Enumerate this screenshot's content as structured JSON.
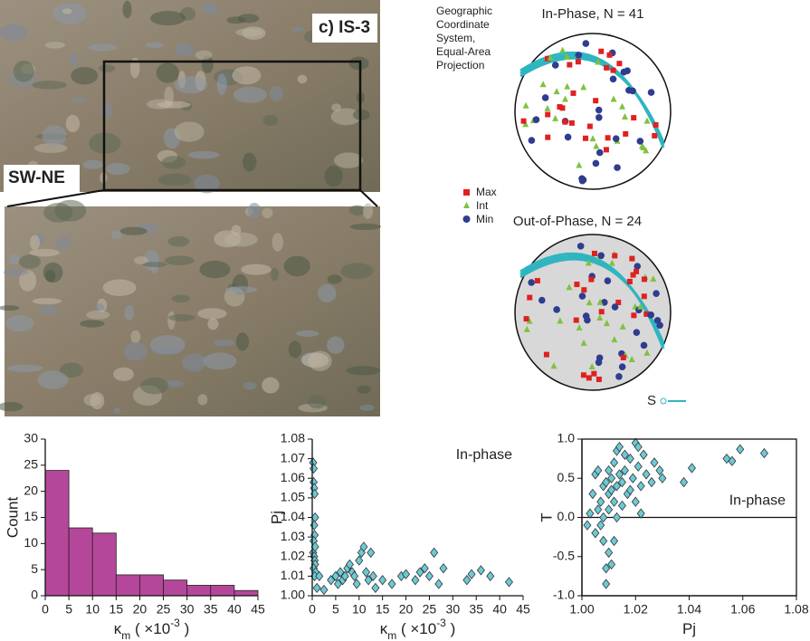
{
  "figure": {
    "panel_label": "c) IS-3",
    "photo_label": "SW-NE",
    "note": [
      "Geographic",
      "Coordinate",
      "System,",
      "Equal-Area",
      "Projection"
    ],
    "stereonets": [
      {
        "title": "In-Phase, N = 41"
      },
      {
        "title": "Out-of-Phase, N = 24"
      }
    ],
    "legend": [
      "Max",
      "Int",
      "Min"
    ],
    "foliation_label": "S"
  },
  "chart_data": [
    {
      "type": "histogram",
      "y_label": "Count",
      "x_label": [
        "κ",
        "m",
        " ( ×10",
        "-3",
        " )"
      ],
      "bins": [
        0,
        5,
        10,
        15,
        20,
        25,
        30,
        35,
        40,
        45
      ],
      "values": [
        24,
        13,
        12,
        4,
        4,
        3,
        2,
        2,
        1
      ],
      "color": "#b5479a",
      "xlim": [
        0,
        45
      ],
      "ylim": [
        0,
        30
      ],
      "xticks": [
        0,
        5,
        10,
        15,
        20,
        25,
        30,
        35,
        40,
        45
      ],
      "yticks": [
        0,
        5,
        10,
        15,
        20,
        25,
        30
      ]
    },
    {
      "type": "scatter",
      "annotation": "In-phase",
      "y_label": "Pj",
      "x_label": [
        "κ",
        "m",
        " ( ×10",
        "-3",
        " )"
      ],
      "color": "#6ccad6",
      "x": [
        0.2,
        0.3,
        0.3,
        0.4,
        0.5,
        0.6,
        0.4,
        0.5,
        0.3,
        0.2,
        0.4,
        0.5,
        0.6,
        0.3,
        0.7,
        0.5,
        1.0,
        0.6,
        2.5,
        4,
        5,
        5.5,
        6,
        6.5,
        7,
        7.5,
        8,
        8.5,
        9,
        9.5,
        10,
        10.5,
        11,
        11.5,
        12,
        12.5,
        13,
        13.5,
        15,
        17,
        19,
        20,
        22,
        23,
        24,
        25,
        26,
        27,
        28,
        33,
        34,
        36,
        38,
        42,
        1.5
      ],
      "values": [
        1.068,
        1.065,
        1.058,
        1.055,
        1.052,
        1.04,
        1.036,
        1.031,
        1.028,
        1.022,
        1.02,
        1.018,
        1.016,
        1.014,
        1.012,
        1.01,
        1.004,
        1.025,
        1.003,
        1.008,
        1.01,
        1.006,
        1.012,
        1.008,
        1.01,
        1.014,
        1.016,
        1.012,
        1.01,
        1.006,
        1.018,
        1.022,
        1.025,
        1.012,
        1.008,
        1.022,
        1.01,
        1.004,
        1.008,
        1.006,
        1.01,
        1.011,
        1.008,
        1.012,
        1.014,
        1.01,
        1.022,
        1.006,
        1.014,
        1.008,
        1.011,
        1.013,
        1.01,
        1.007,
        1.01
      ],
      "xlim": [
        0,
        45
      ],
      "ylim": [
        1.0,
        1.08
      ],
      "xticks": [
        0,
        5,
        10,
        15,
        20,
        25,
        30,
        35,
        40,
        45
      ],
      "yticks": [
        {
          "value": 1.0,
          "label": "1.00"
        },
        1.01,
        1.02,
        1.03,
        1.04,
        1.05,
        1.06,
        1.07,
        1.08
      ]
    },
    {
      "type": "scatter",
      "annotation": "In-phase",
      "y_label": "T",
      "x_label": [
        "Pj"
      ],
      "color": "#6ccad6",
      "box": true,
      "zero_line": true,
      "x": [
        1.002,
        1.003,
        1.004,
        1.005,
        1.005,
        1.006,
        1.006,
        1.007,
        1.007,
        1.008,
        1.008,
        1.008,
        1.009,
        1.009,
        1.009,
        1.01,
        1.01,
        1.01,
        1.01,
        1.011,
        1.011,
        1.011,
        1.012,
        1.012,
        1.012,
        1.013,
        1.013,
        1.013,
        1.014,
        1.014,
        1.015,
        1.015,
        1.016,
        1.017,
        1.018,
        1.019,
        1.02,
        1.02,
        1.021,
        1.021,
        1.022,
        1.022,
        1.023,
        1.024,
        1.026,
        1.027,
        1.029,
        1.03,
        1.038,
        1.041,
        1.054,
        1.056,
        1.059,
        1.068,
        1.018,
        1.016
      ],
      "values": [
        -0.1,
        0.05,
        0.3,
        0.55,
        -0.2,
        0.6,
        0.1,
        0.2,
        -0.1,
        0.4,
        0.0,
        -0.3,
        0.45,
        -0.85,
        -0.65,
        0.6,
        0.3,
        0.1,
        -0.45,
        0.5,
        0.35,
        -0.6,
        0.7,
        0.2,
        -0.3,
        0.85,
        0.4,
        0.0,
        0.9,
        0.55,
        0.45,
        0.15,
        0.6,
        0.3,
        0.75,
        0.5,
        0.95,
        0.2,
        0.9,
        0.65,
        0.05,
        0.4,
        0.8,
        0.55,
        0.45,
        0.7,
        0.6,
        0.5,
        0.45,
        0.63,
        0.75,
        0.72,
        0.87,
        0.82,
        0.35,
        0.8
      ],
      "xlim": [
        1.0,
        1.08
      ],
      "ylim": [
        -1.0,
        1.0
      ],
      "xticks": [
        {
          "value": 1.0,
          "label": "1.00"
        },
        1.02,
        1.04,
        1.06,
        1.08
      ],
      "yticks": [
        {
          "value": -1.0,
          "label": "-1.0"
        },
        -0.5,
        {
          "value": 0.0,
          "label": "0.0"
        },
        0.5,
        {
          "value": 1.0,
          "label": "1.0"
        }
      ]
    }
  ]
}
